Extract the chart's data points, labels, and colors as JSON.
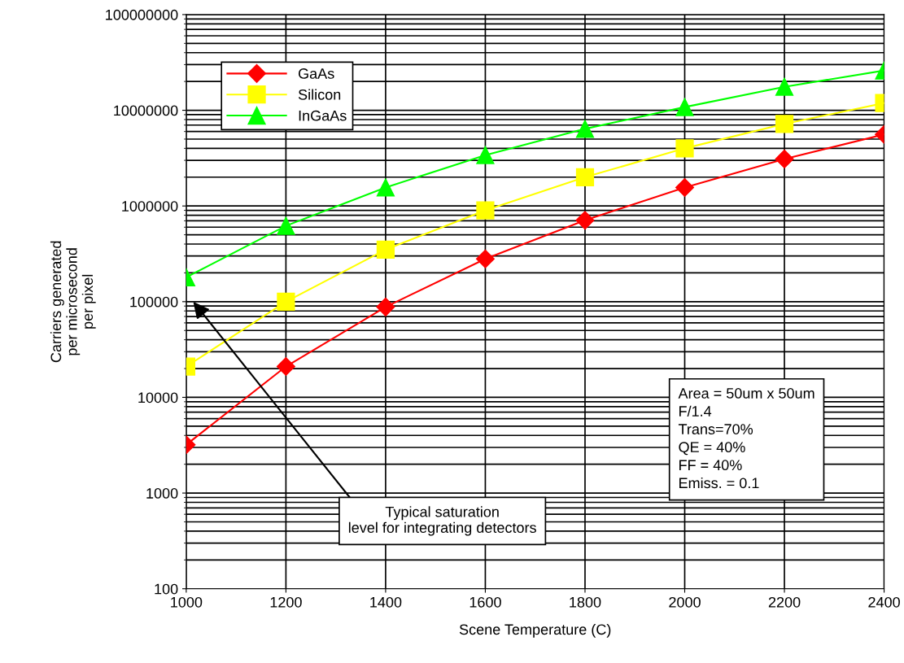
{
  "chart_data": {
    "type": "line",
    "xlabel": "Scene Temperature (C)",
    "ylabel": "Carriers generated\nper microsecond\nper pixel",
    "x": [
      1000,
      1200,
      1400,
      1600,
      1800,
      2000,
      2200,
      2400
    ],
    "series": [
      {
        "name": "GaAs",
        "color": "#ff0000",
        "marker": "diamond",
        "values": [
          3200,
          21000,
          88000,
          280000,
          710000,
          1560000,
          3100000,
          5600000
        ]
      },
      {
        "name": "Silicon",
        "color": "#ffff00",
        "marker": "square",
        "values": [
          21000,
          100000,
          350000,
          900000,
          2000000,
          4000000,
          7200000,
          11900000
        ]
      },
      {
        "name": "InGaAs",
        "color": "#00ff00",
        "marker": "triangle",
        "values": [
          180000,
          620000,
          1560000,
          3400000,
          6400000,
          10800000,
          17600000,
          26000000
        ]
      }
    ],
    "log": "y",
    "xlim": [
      1000,
      2400
    ],
    "xticks": [
      1000,
      1200,
      1400,
      1600,
      1800,
      2000,
      2200,
      2400
    ],
    "ylim": [
      100,
      100000000
    ],
    "yticks": [
      100,
      1000,
      10000,
      100000,
      1000000,
      10000000,
      100000000
    ],
    "grid": true,
    "legend": "top left",
    "annotations": [
      "Typical saturation\nlevel for integrating detectors",
      "Area = 50um x 50um\nF/1.4\nTrans=70%\nQE = 40%\nFF = 40%\nEmiss. = 0.1"
    ]
  }
}
